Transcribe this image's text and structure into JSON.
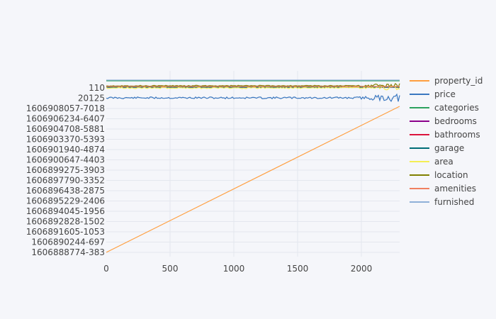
{
  "chart_data": {
    "type": "line",
    "title": "",
    "xlabel": "",
    "ylabel": "",
    "xlim": [
      0,
      2300
    ],
    "x_ticks": [
      0,
      500,
      1000,
      1500,
      2000
    ],
    "y_ticks": [
      "110",
      "20125",
      "1606908057-7018",
      "1606906234-6407",
      "1606904708-5881",
      "1606903370-5393",
      "1606901940-4874",
      "1606900647-4403",
      "1606899275-3903",
      "1606897790-3352",
      "1606896438-2875",
      "1606895229-2406",
      "1606894045-1956",
      "1606892828-1502",
      "1606891605-1053",
      "1606890244-697",
      "1606888774-383"
    ],
    "grid": true,
    "legend_position": "right",
    "series": [
      {
        "name": "property_id",
        "color": "#ff9f40",
        "x": [
          0,
          2300
        ],
        "y": [
          "1606888774-383",
          "1606908057-7018"
        ]
      },
      {
        "name": "price",
        "color": "#3b78c0"
      },
      {
        "name": "categories",
        "color": "#2ca25f"
      },
      {
        "name": "bedrooms",
        "color": "#8b008b"
      },
      {
        "name": "bathrooms",
        "color": "#dc143c"
      },
      {
        "name": "garage",
        "color": "#006d77"
      },
      {
        "name": "area",
        "color": "#f4ee54"
      },
      {
        "name": "location",
        "color": "#808000"
      },
      {
        "name": "amenities",
        "color": "#f08060"
      },
      {
        "name": "furnished",
        "color": "#8fb0d8"
      }
    ]
  }
}
